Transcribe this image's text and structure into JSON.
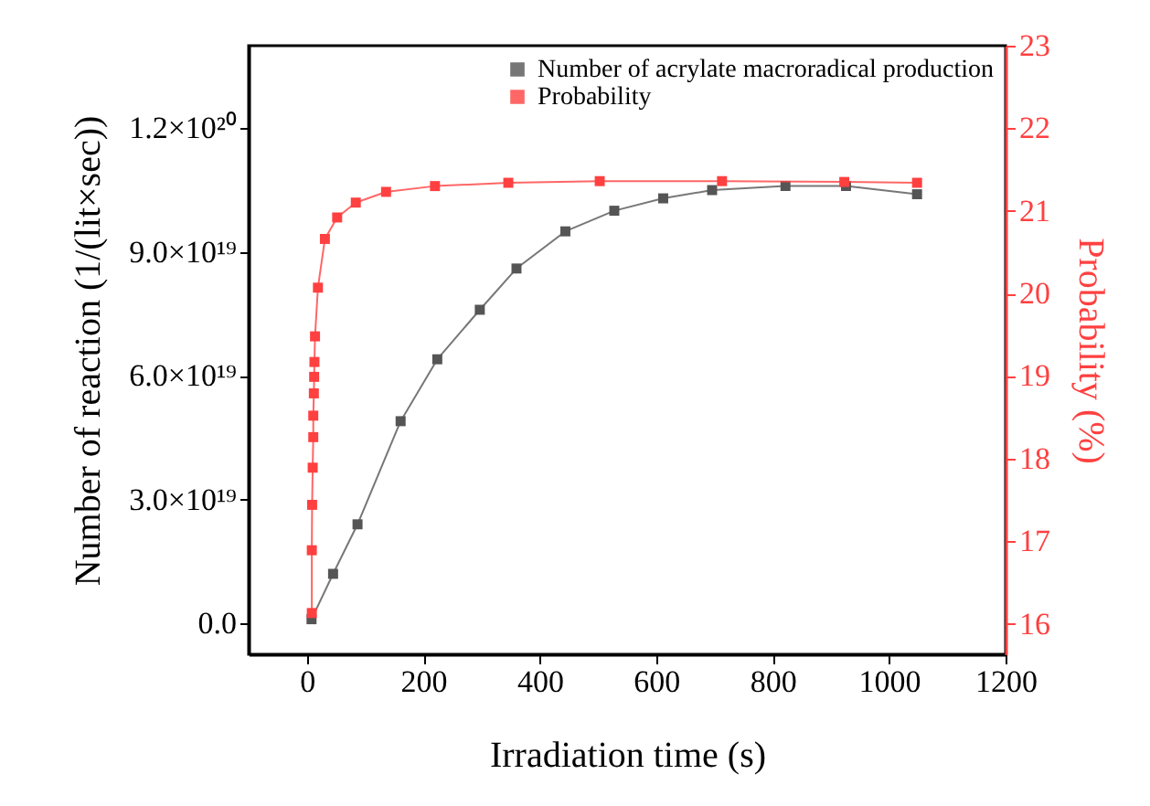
{
  "chart_data": {
    "type": "line",
    "xlabel": "Irradiation time (s)",
    "ylabel": "Number of reaction (1/(lit×sec))",
    "y2label": "Probability (%)",
    "xlim": [
      -100,
      1200
    ],
    "xticks": [
      0,
      200,
      400,
      600,
      800,
      1000,
      1200
    ],
    "ylim": [
      -7.5e+18,
      1.4e+20
    ],
    "yticks": [
      {
        "value": 0,
        "label": "0.0"
      },
      {
        "value": 3e+19,
        "label": "3.0×10¹⁹"
      },
      {
        "value": 6e+19,
        "label": "6.0×10¹⁹"
      },
      {
        "value": 9e+19,
        "label": "9.0×10¹⁹"
      },
      {
        "value": 1.2e+20,
        "label": "1.2×10²⁰"
      }
    ],
    "y2lim": [
      15.63,
      23
    ],
    "y2ticks": [
      16,
      17,
      18,
      19,
      20,
      21,
      22,
      23
    ],
    "grid": false,
    "legend": "top right",
    "marker": "square",
    "line_style": "solid",
    "series": [
      {
        "name": "Number of acrylate macroradical production",
        "color": "#555555",
        "x": [
          8,
          45,
          87,
          161,
          224,
          297,
          360,
          444,
          528,
          612,
          696,
          822,
          926,
          1048
        ],
        "values": [
          1e+18,
          1.2e+19,
          2.4e+19,
          4.9e+19,
          6.4e+19,
          7.6e+19,
          8.6e+19,
          9.5e+19,
          1e+20,
          1.03e+20,
          1.05e+20,
          1.06e+20,
          1.06e+20,
          1.04e+20
        ]
      },
      {
        "name": "Probability",
        "color": "#ff4040",
        "axis": "y2",
        "x": [
          8.5,
          8.5,
          9,
          10,
          11,
          11,
          12,
          12.5,
          13,
          14,
          19,
          31,
          52,
          84,
          136,
          220,
          346,
          503,
          713,
          923,
          1048
        ],
        "values": [
          16.13,
          16.89,
          17.44,
          17.89,
          18.26,
          18.52,
          18.79,
          18.99,
          19.17,
          19.48,
          20.07,
          20.66,
          20.92,
          21.1,
          21.23,
          21.3,
          21.34,
          21.36,
          21.36,
          21.35,
          21.34
        ]
      }
    ]
  }
}
